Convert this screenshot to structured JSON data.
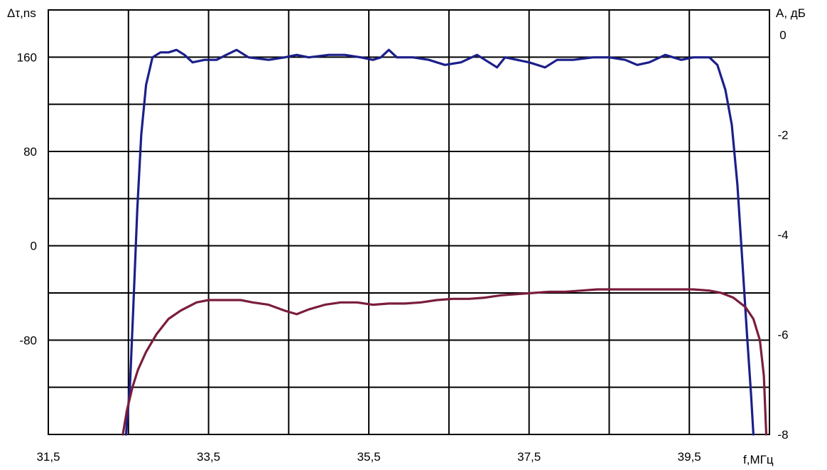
{
  "chart_data": {
    "type": "line",
    "left_axis_label": "Δτ,ns",
    "right_axis_label": "A, дБ",
    "xlabel": "f,МГц",
    "x_range": [
      31.5,
      40.5
    ],
    "y_left_range": [
      -160,
      200
    ],
    "y_right_range": [
      -8,
      0.5
    ],
    "x_ticks": [
      {
        "value": 31.5,
        "label": "31,5"
      },
      {
        "value": 33.5,
        "label": "33,5"
      },
      {
        "value": 35.5,
        "label": "35,5"
      },
      {
        "value": 37.5,
        "label": "37,5"
      },
      {
        "value": 39.5,
        "label": "39,5"
      }
    ],
    "y_left_ticks": [
      {
        "value": 160,
        "label": "160"
      },
      {
        "value": 80,
        "label": "80"
      },
      {
        "value": 0,
        "label": "0"
      },
      {
        "value": -80,
        "label": "-80"
      }
    ],
    "y_right_ticks": [
      {
        "value": 0,
        "label": "0"
      },
      {
        "value": -2,
        "label": "-2"
      },
      {
        "value": -4,
        "label": "-4"
      },
      {
        "value": -6,
        "label": "-6"
      },
      {
        "value": -8,
        "label": "-8"
      }
    ],
    "grid": true,
    "series": [
      {
        "axis": "right",
        "color": "#1b1f8a",
        "points": [
          [
            32.47,
            -8.0
          ],
          [
            32.52,
            -7.0
          ],
          [
            32.56,
            -5.5
          ],
          [
            32.61,
            -3.5
          ],
          [
            32.66,
            -2.0
          ],
          [
            32.72,
            -1.0
          ],
          [
            32.8,
            -0.45
          ],
          [
            32.9,
            -0.35
          ],
          [
            33.0,
            -0.35
          ],
          [
            33.1,
            -0.3
          ],
          [
            33.2,
            -0.4
          ],
          [
            33.3,
            -0.55
          ],
          [
            33.45,
            -0.5
          ],
          [
            33.6,
            -0.5
          ],
          [
            33.72,
            -0.4
          ],
          [
            33.85,
            -0.3
          ],
          [
            34.0,
            -0.45
          ],
          [
            34.25,
            -0.5
          ],
          [
            34.45,
            -0.45
          ],
          [
            34.6,
            -0.4
          ],
          [
            34.75,
            -0.45
          ],
          [
            35.0,
            -0.4
          ],
          [
            35.2,
            -0.4
          ],
          [
            35.4,
            -0.45
          ],
          [
            35.55,
            -0.5
          ],
          [
            35.65,
            -0.45
          ],
          [
            35.75,
            -0.3
          ],
          [
            35.85,
            -0.45
          ],
          [
            36.05,
            -0.45
          ],
          [
            36.25,
            -0.5
          ],
          [
            36.45,
            -0.6
          ],
          [
            36.65,
            -0.55
          ],
          [
            36.85,
            -0.4
          ],
          [
            37.0,
            -0.55
          ],
          [
            37.1,
            -0.65
          ],
          [
            37.2,
            -0.45
          ],
          [
            37.35,
            -0.5
          ],
          [
            37.5,
            -0.55
          ],
          [
            37.7,
            -0.65
          ],
          [
            37.85,
            -0.5
          ],
          [
            38.05,
            -0.5
          ],
          [
            38.3,
            -0.45
          ],
          [
            38.5,
            -0.45
          ],
          [
            38.7,
            -0.5
          ],
          [
            38.85,
            -0.6
          ],
          [
            39.0,
            -0.55
          ],
          [
            39.2,
            -0.4
          ],
          [
            39.4,
            -0.5
          ],
          [
            39.55,
            -0.45
          ],
          [
            39.75,
            -0.45
          ],
          [
            39.85,
            -0.6
          ],
          [
            39.95,
            -1.1
          ],
          [
            40.03,
            -1.8
          ],
          [
            40.1,
            -3.0
          ],
          [
            40.16,
            -4.5
          ],
          [
            40.22,
            -6.0
          ],
          [
            40.27,
            -7.2
          ],
          [
            40.3,
            -8.0
          ]
        ]
      },
      {
        "axis": "left",
        "color": "#7a1d3c",
        "points": [
          [
            32.43,
            -160
          ],
          [
            32.48,
            -140
          ],
          [
            32.55,
            -120
          ],
          [
            32.62,
            -105
          ],
          [
            32.72,
            -90
          ],
          [
            32.85,
            -75
          ],
          [
            33.0,
            -62
          ],
          [
            33.15,
            -55
          ],
          [
            33.35,
            -48
          ],
          [
            33.5,
            -46
          ],
          [
            33.7,
            -46
          ],
          [
            33.9,
            -46
          ],
          [
            34.05,
            -48
          ],
          [
            34.25,
            -50
          ],
          [
            34.45,
            -55
          ],
          [
            34.6,
            -58
          ],
          [
            34.75,
            -54
          ],
          [
            34.95,
            -50
          ],
          [
            35.15,
            -48
          ],
          [
            35.35,
            -48
          ],
          [
            35.55,
            -50
          ],
          [
            35.75,
            -49
          ],
          [
            35.95,
            -49
          ],
          [
            36.15,
            -48
          ],
          [
            36.35,
            -46
          ],
          [
            36.55,
            -45
          ],
          [
            36.75,
            -45
          ],
          [
            36.95,
            -44
          ],
          [
            37.15,
            -42
          ],
          [
            37.35,
            -41
          ],
          [
            37.55,
            -40
          ],
          [
            37.75,
            -39
          ],
          [
            37.95,
            -39
          ],
          [
            38.15,
            -38
          ],
          [
            38.35,
            -37
          ],
          [
            38.55,
            -37
          ],
          [
            38.75,
            -37
          ],
          [
            38.95,
            -37
          ],
          [
            39.15,
            -37
          ],
          [
            39.35,
            -37
          ],
          [
            39.55,
            -37
          ],
          [
            39.75,
            -38
          ],
          [
            39.9,
            -40
          ],
          [
            40.05,
            -44
          ],
          [
            40.2,
            -52
          ],
          [
            40.3,
            -62
          ],
          [
            40.38,
            -80
          ],
          [
            40.43,
            -110
          ],
          [
            40.46,
            -160
          ]
        ]
      }
    ]
  }
}
